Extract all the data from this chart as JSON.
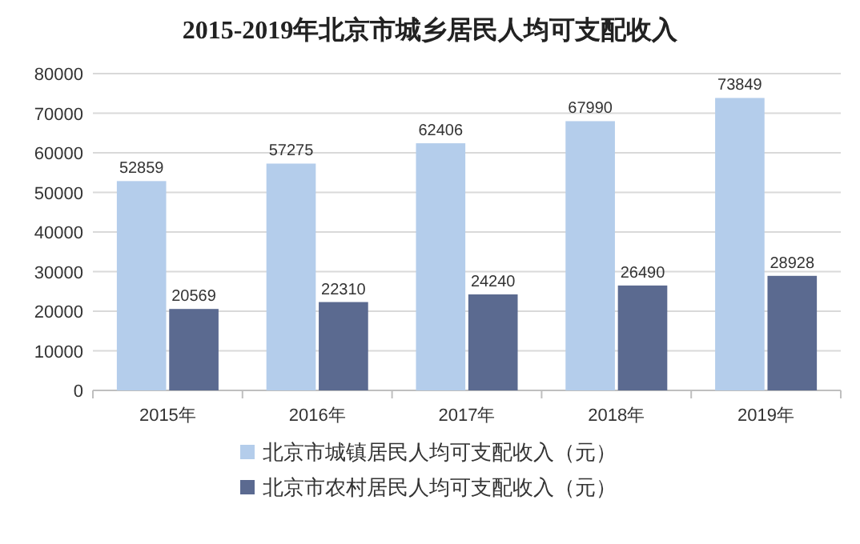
{
  "chart_data": {
    "type": "bar",
    "title": "2015-2019年北京市城乡居民人均可支配收入",
    "categories": [
      "2015年",
      "2016年",
      "2017年",
      "2018年",
      "2019年"
    ],
    "series": [
      {
        "name": "北京市城镇居民人均可支配收入（元）",
        "color": "#b4cdeb",
        "values": [
          52859,
          57275,
          62406,
          67990,
          73849
        ]
      },
      {
        "name": "北京市农村居民人均可支配收入（元）",
        "color": "#5b6a90",
        "values": [
          20569,
          22310,
          24240,
          26490,
          28928
        ]
      }
    ],
    "ylim": [
      0,
      80000
    ],
    "yticks": [
      0,
      10000,
      20000,
      30000,
      40000,
      50000,
      60000,
      70000,
      80000
    ],
    "grid": "y",
    "legend": "bottom",
    "data_labels": true
  }
}
